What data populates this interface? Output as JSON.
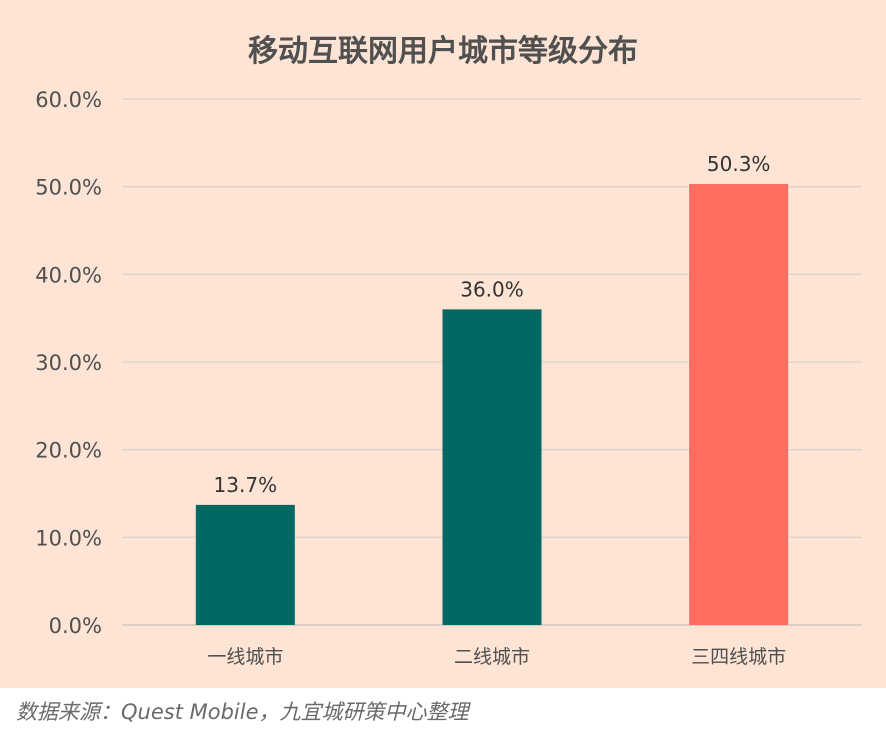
{
  "chart_data": {
    "type": "bar",
    "title": "移动互联网用户城市等级分布",
    "categories": [
      "一线城市",
      "二线城市",
      "三四线城市"
    ],
    "values": [
      13.7,
      36.0,
      50.3
    ],
    "data_labels": [
      "13.7%",
      "36.0%",
      "50.3%"
    ],
    "bar_colors": [
      "#036762",
      "#036762",
      "#fe6d5f"
    ],
    "ylim": [
      0,
      60
    ],
    "yticks": [
      0,
      10,
      20,
      30,
      40,
      50,
      60
    ],
    "ytick_labels": [
      "0.0%",
      "10.0%",
      "20.0%",
      "30.0%",
      "40.0%",
      "50.0%",
      "60.0%"
    ],
    "xlabel": "",
    "ylabel": "",
    "grid": true,
    "legend": "none"
  },
  "source": "数据来源：Quest Mobile，九宜城研策中心整理"
}
